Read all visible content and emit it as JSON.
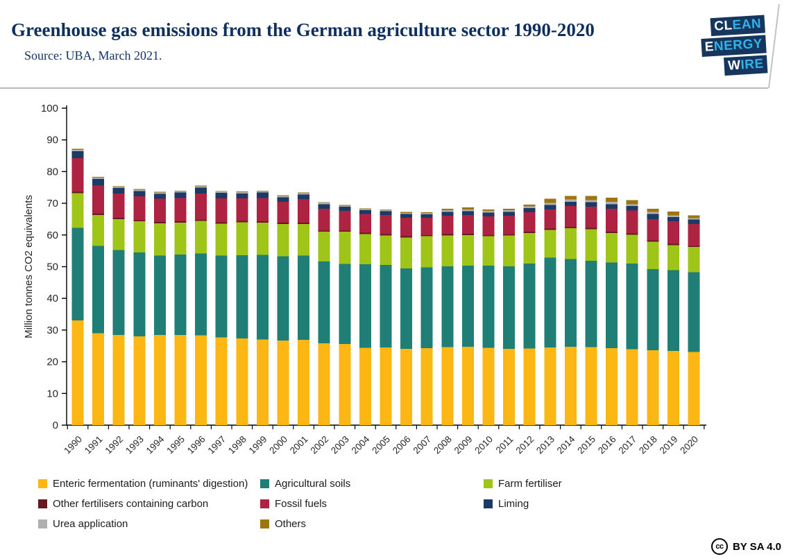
{
  "header": {
    "title": "Greenhouse gas emissions from the German agriculture sector 1990-2020",
    "source": "Source: UBA, March 2021.",
    "logo": {
      "bg_color": "#17365d",
      "accent_color": "#2fb3e8",
      "lines": [
        {
          "white": "CL",
          "cyan": "EAN"
        },
        {
          "white": "E",
          "cyan": "NERGY"
        },
        {
          "white": "W",
          "cyan": "IRE"
        }
      ]
    }
  },
  "footer": {
    "cc_icon": "cc",
    "cc_label": "BY SA 4.0"
  },
  "chart_data": {
    "type": "bar",
    "stacked": true,
    "ylabel": "Million tonnes CO2 equivalents",
    "ylim": [
      0,
      100
    ],
    "ytick_step": 10,
    "grid": false,
    "legend_position": "bottom",
    "categories": [
      1990,
      1991,
      1992,
      1993,
      1994,
      1995,
      1996,
      1997,
      1998,
      1999,
      2000,
      2001,
      2002,
      2003,
      2004,
      2005,
      2006,
      2007,
      2008,
      2009,
      2010,
      2011,
      2012,
      2013,
      2014,
      2015,
      2016,
      2017,
      2018,
      2019,
      2020
    ],
    "series": [
      {
        "name": "Enteric fermentation (ruminants' digestion)",
        "color": "#FDB714",
        "values": [
          33.0,
          29.0,
          28.4,
          28.0,
          28.4,
          28.4,
          28.3,
          27.7,
          27.3,
          27.0,
          26.7,
          26.9,
          25.8,
          25.6,
          24.4,
          24.5,
          24.1,
          24.3,
          24.6,
          24.7,
          24.4,
          24.1,
          24.2,
          24.5,
          24.7,
          24.6,
          24.3,
          24.0,
          23.6,
          23.4,
          23.1
        ]
      },
      {
        "name": "Agricultural soils",
        "color": "#1F7F76",
        "values": [
          29.3,
          27.6,
          26.8,
          26.5,
          25.1,
          25.4,
          25.9,
          25.8,
          26.3,
          26.7,
          26.6,
          26.6,
          25.8,
          25.3,
          26.4,
          26.0,
          25.3,
          25.5,
          25.5,
          25.6,
          25.9,
          26.0,
          26.8,
          28.3,
          27.7,
          27.3,
          27.0,
          27.0,
          25.6,
          25.5,
          25.1
        ]
      },
      {
        "name": "Farm fertiliser",
        "color": "#9FC519",
        "values": [
          10.9,
          9.7,
          9.8,
          9.8,
          10.2,
          10.1,
          10.2,
          10.1,
          10.4,
          10.2,
          10.2,
          10.0,
          9.4,
          10.1,
          9.5,
          9.4,
          9.8,
          9.8,
          9.8,
          9.7,
          9.3,
          9.7,
          9.6,
          8.8,
          9.7,
          9.9,
          9.3,
          9.1,
          8.7,
          7.9,
          8.0
        ]
      },
      {
        "name": "Other fertilisers containing carbon",
        "color": "#641A22",
        "values": [
          0.4,
          0.4,
          0.4,
          0.4,
          0.4,
          0.4,
          0.4,
          0.4,
          0.4,
          0.4,
          0.4,
          0.4,
          0.4,
          0.4,
          0.4,
          0.4,
          0.4,
          0.4,
          0.4,
          0.4,
          0.4,
          0.4,
          0.4,
          0.4,
          0.4,
          0.4,
          0.4,
          0.4,
          0.4,
          0.4,
          0.4
        ]
      },
      {
        "name": "Fossil fuels",
        "color": "#AF2342",
        "values": [
          10.6,
          8.9,
          7.7,
          7.5,
          7.3,
          7.4,
          8.3,
          7.6,
          7.1,
          7.4,
          6.6,
          7.4,
          6.9,
          6.2,
          5.9,
          6.0,
          5.8,
          5.4,
          5.8,
          5.9,
          5.9,
          5.9,
          6.2,
          6.1,
          6.6,
          6.7,
          7.3,
          7.2,
          6.7,
          7.1,
          6.9
        ]
      },
      {
        "name": "Liming",
        "color": "#1B3A64",
        "values": [
          2.2,
          2.1,
          1.7,
          1.7,
          1.6,
          1.7,
          1.9,
          1.7,
          1.6,
          1.7,
          1.4,
          1.5,
          1.4,
          1.3,
          1.2,
          1.2,
          1.2,
          1.1,
          1.2,
          1.2,
          1.2,
          1.2,
          1.3,
          1.4,
          1.4,
          1.4,
          1.4,
          1.4,
          1.6,
          1.4,
          1.4
        ]
      },
      {
        "name": "Urea application",
        "color": "#AFAFAF",
        "values": [
          0.5,
          0.4,
          0.4,
          0.4,
          0.4,
          0.4,
          0.4,
          0.4,
          0.4,
          0.4,
          0.4,
          0.4,
          0.5,
          0.4,
          0.4,
          0.4,
          0.4,
          0.4,
          0.5,
          0.6,
          0.5,
          0.5,
          0.5,
          0.6,
          0.7,
          0.7,
          0.8,
          0.6,
          0.7,
          0.5,
          0.4
        ]
      },
      {
        "name": "Others",
        "color": "#9C7710",
        "values": [
          0.3,
          0.2,
          0.2,
          0.2,
          0.2,
          0.2,
          0.2,
          0.2,
          0.2,
          0.2,
          0.2,
          0.2,
          0.2,
          0.2,
          0.2,
          0.2,
          0.3,
          0.3,
          0.5,
          0.6,
          0.5,
          0.5,
          0.6,
          1.3,
          1.1,
          1.3,
          1.3,
          1.3,
          1.0,
          1.2,
          0.9
        ]
      }
    ]
  }
}
